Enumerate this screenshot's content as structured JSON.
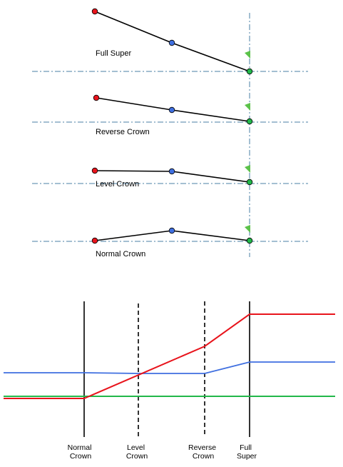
{
  "colors": {
    "left_edge": "#e8141c",
    "centerline": "#3f6fe0",
    "right_edge": "#22b84a",
    "pivot_flag": "#5cc24a",
    "reference_line": "#4a7fa6"
  },
  "cross_sections": [
    {
      "label": "Full Super"
    },
    {
      "label": "Reverse Crown"
    },
    {
      "label": "Level Crown"
    },
    {
      "label": "Normal Crown"
    }
  ],
  "profile": {
    "stations": [
      {
        "line1": "Normal",
        "line2": "Crown"
      },
      {
        "line1": "Level",
        "line2": "Crown"
      },
      {
        "line1": "Reverse",
        "line2": "Crown"
      },
      {
        "line1": "Full",
        "line2": "Super"
      }
    ]
  }
}
